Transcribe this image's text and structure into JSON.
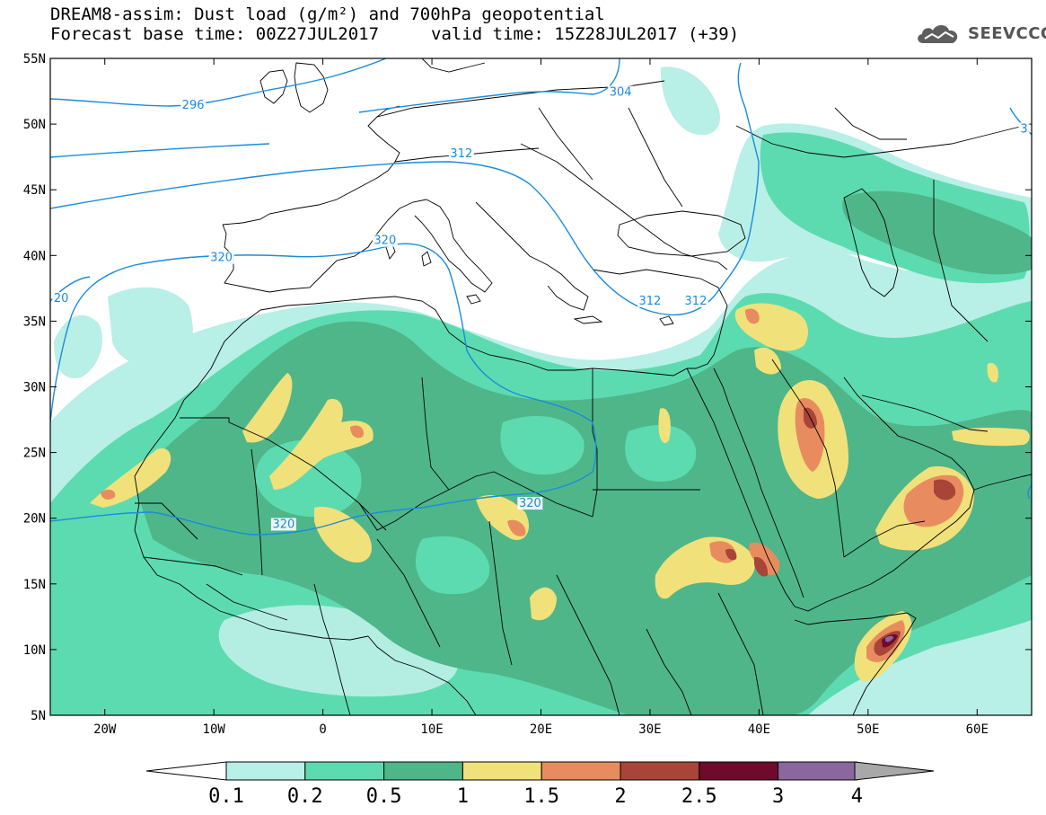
{
  "title": {
    "line1": "DREAM8-assim: Dust load (g/m²) and 700hPa geopotential",
    "line2_base": "Forecast base time: 00Z27JUL2017",
    "line2_valid": "valid time: 15Z28JUL2017 (+39)"
  },
  "logo": {
    "text": "SEEVCCC",
    "icon": "cloud-icon"
  },
  "map": {
    "lon_range": [
      -25,
      65
    ],
    "lat_range": [
      5,
      55
    ],
    "lat_ticks": [
      {
        "lat": 55,
        "label": "55N"
      },
      {
        "lat": 50,
        "label": "50N"
      },
      {
        "lat": 45,
        "label": "45N"
      },
      {
        "lat": 40,
        "label": "40N"
      },
      {
        "lat": 35,
        "label": "35N"
      },
      {
        "lat": 30,
        "label": "30N"
      },
      {
        "lat": 25,
        "label": "25N"
      },
      {
        "lat": 20,
        "label": "20N"
      },
      {
        "lat": 15,
        "label": "15N"
      },
      {
        "lat": 10,
        "label": "10N"
      },
      {
        "lat": 5,
        "label": "5N"
      }
    ],
    "lon_ticks": [
      {
        "lon": -20,
        "label": "20W"
      },
      {
        "lon": -10,
        "label": "10W"
      },
      {
        "lon": 0,
        "label": "0"
      },
      {
        "lon": 10,
        "label": "10E"
      },
      {
        "lon": 20,
        "label": "20E"
      },
      {
        "lon": 30,
        "label": "30E"
      },
      {
        "lon": 40,
        "label": "40E"
      },
      {
        "lon": 50,
        "label": "50E"
      },
      {
        "lon": 60,
        "label": "60E"
      }
    ],
    "contour_labels": [
      {
        "text": "296",
        "lon": -11.9,
        "lat": 51.3
      },
      {
        "text": "304",
        "lon": 27.3,
        "lat": 52.3
      },
      {
        "text": "312",
        "lon": 12.7,
        "lat": 47.6
      },
      {
        "text": "320",
        "lon": -9.3,
        "lat": 39.7
      },
      {
        "text": "320",
        "lon": 5.7,
        "lat": 41.0
      },
      {
        "text": "312",
        "lon": 30.0,
        "lat": 36.4
      },
      {
        "text": "312",
        "lon": 34.2,
        "lat": 36.4
      },
      {
        "text": "320",
        "lon": -3.6,
        "lat": 19.4
      },
      {
        "text": "320",
        "lon": 19.0,
        "lat": 21.0
      },
      {
        "text": "20",
        "lon": -24.0,
        "lat": 36.6
      },
      {
        "text": "3",
        "lon": 64.3,
        "lat": 49.5
      }
    ]
  },
  "colorbar": {
    "colors": [
      "#b8efe6",
      "#5ddbb0",
      "#4fb68a",
      "#f1e17a",
      "#e88c5f",
      "#a84538",
      "#6f0a2c",
      "#8a679e",
      "#a8a8a8"
    ],
    "labels": [
      "0.1",
      "0.2",
      "0.5",
      "1",
      "1.5",
      "2",
      "2.5",
      "3",
      "4"
    ]
  }
}
